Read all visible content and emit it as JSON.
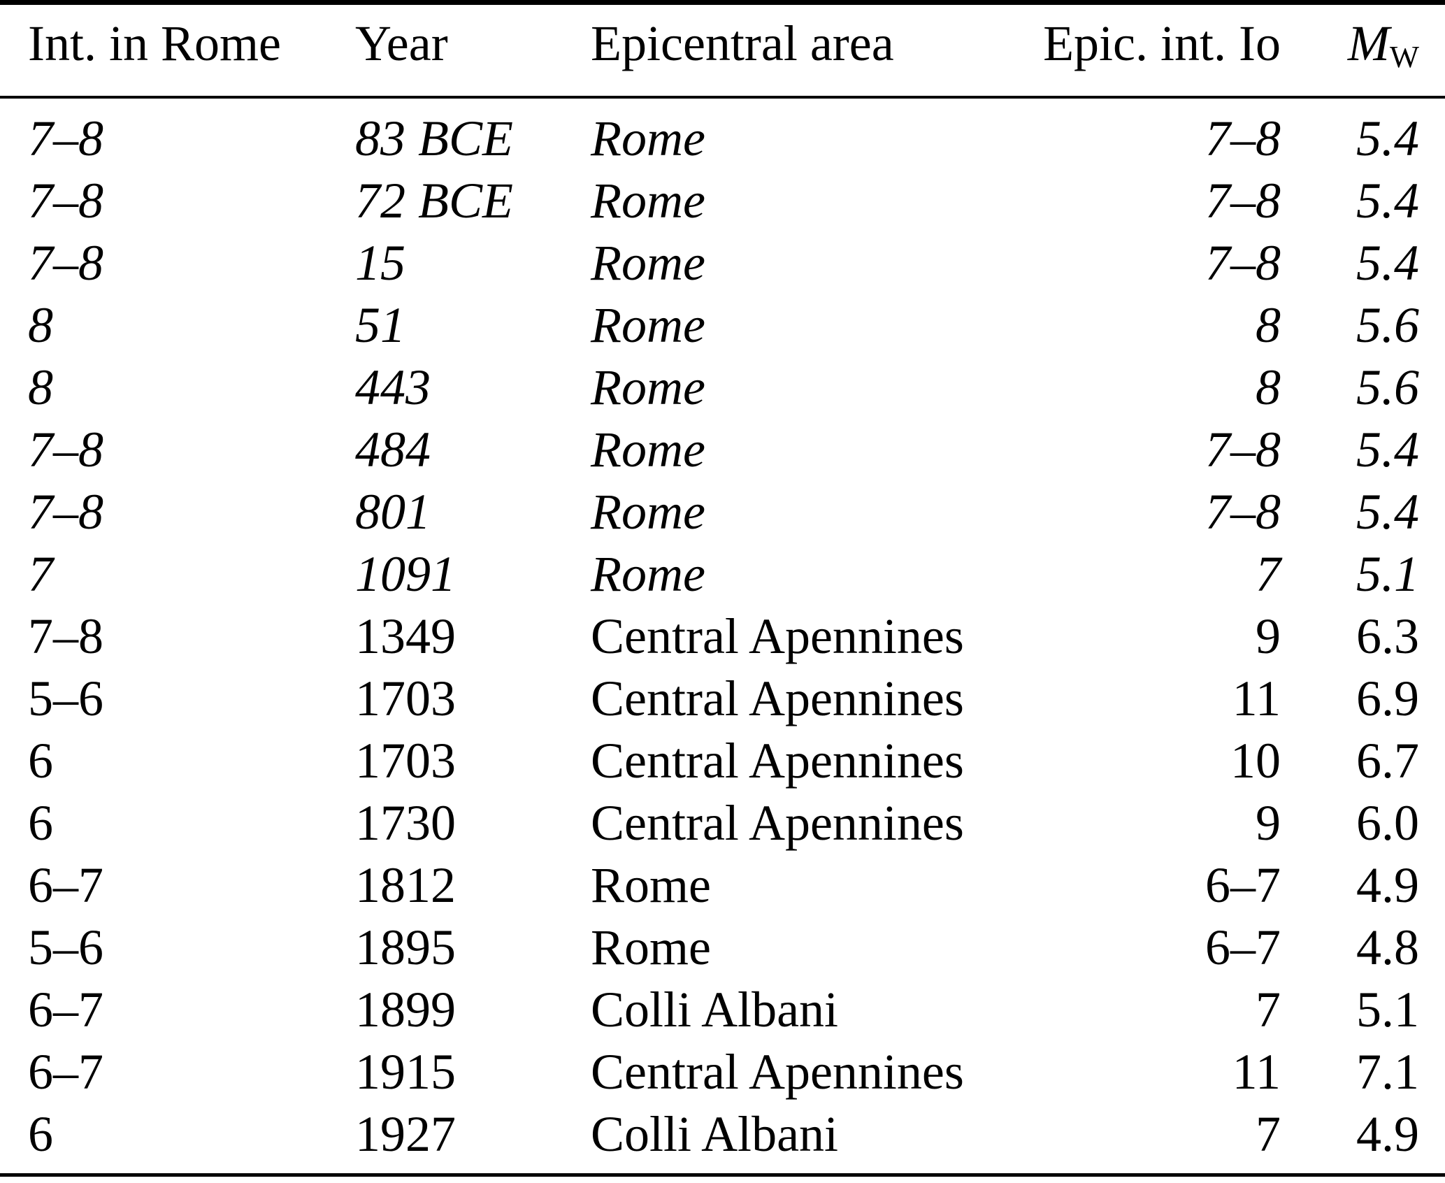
{
  "table": {
    "columns": [
      {
        "key": "int_rome",
        "label": "Int. in Rome",
        "align": "left"
      },
      {
        "key": "year",
        "label": "Year",
        "align": "left"
      },
      {
        "key": "area",
        "label": "Epicentral area",
        "align": "left"
      },
      {
        "key": "io",
        "label": "Epic. int. Io",
        "align": "right"
      },
      {
        "key": "mw",
        "label": "M",
        "sub": "W",
        "align": "right"
      }
    ],
    "rows": [
      {
        "int_rome": "7–8",
        "year": "83 BCE",
        "area": "Rome",
        "io": "7–8",
        "mw": "5.4",
        "italic": true
      },
      {
        "int_rome": "7–8",
        "year": "72 BCE",
        "area": "Rome",
        "io": "7–8",
        "mw": "5.4",
        "italic": true
      },
      {
        "int_rome": "7–8",
        "year": "15",
        "area": "Rome",
        "io": "7–8",
        "mw": "5.4",
        "italic": true
      },
      {
        "int_rome": "8",
        "year": "51",
        "area": "Rome",
        "io": "8",
        "mw": "5.6",
        "italic": true
      },
      {
        "int_rome": "8",
        "year": "443",
        "area": "Rome",
        "io": "8",
        "mw": "5.6",
        "italic": true
      },
      {
        "int_rome": "7–8",
        "year": "484",
        "area": "Rome",
        "io": "7–8",
        "mw": "5.4",
        "italic": true
      },
      {
        "int_rome": "7–8",
        "year": "801",
        "area": "Rome",
        "io": "7–8",
        "mw": "5.4",
        "italic": true
      },
      {
        "int_rome": "7",
        "year": "1091",
        "area": "Rome",
        "io": "7",
        "mw": "5.1",
        "italic": true
      },
      {
        "int_rome": "7–8",
        "year": "1349",
        "area": "Central Apennines",
        "io": "9",
        "mw": "6.3",
        "italic": false
      },
      {
        "int_rome": "5–6",
        "year": "1703",
        "area": "Central Apennines",
        "io": "11",
        "mw": "6.9",
        "italic": false
      },
      {
        "int_rome": "6",
        "year": "1703",
        "area": "Central Apennines",
        "io": "10",
        "mw": "6.7",
        "italic": false
      },
      {
        "int_rome": "6",
        "year": "1730",
        "area": "Central Apennines",
        "io": "9",
        "mw": "6.0",
        "italic": false
      },
      {
        "int_rome": "6–7",
        "year": "1812",
        "area": "Rome",
        "io": "6–7",
        "mw": "4.9",
        "italic": false
      },
      {
        "int_rome": "5–6",
        "year": "1895",
        "area": "Rome",
        "io": "6–7",
        "mw": "4.8",
        "italic": false
      },
      {
        "int_rome": "6–7",
        "year": "1899",
        "area": "Colli Albani",
        "io": "7",
        "mw": "5.1",
        "italic": false
      },
      {
        "int_rome": "6–7",
        "year": "1915",
        "area": "Central Apennines",
        "io": "11",
        "mw": "7.1",
        "italic": false
      },
      {
        "int_rome": "6",
        "year": "1927",
        "area": "Colli Albani",
        "io": "7",
        "mw": "4.9",
        "italic": false
      }
    ]
  },
  "colors": {
    "text": "#000000",
    "background": "#ffffff",
    "rule": "#000000"
  }
}
